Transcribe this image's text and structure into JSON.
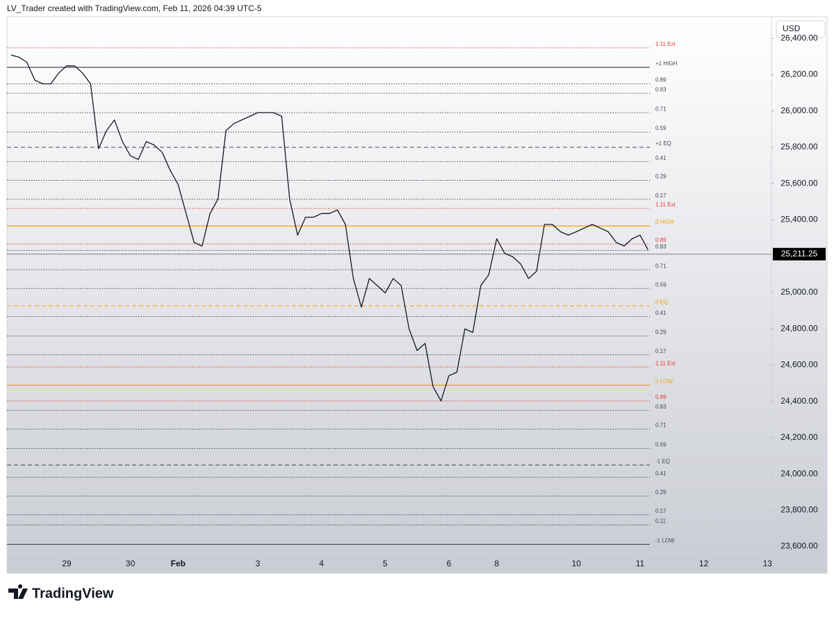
{
  "header": {
    "attribution": "LV_Trader created with TradingView.com, Feb 11, 2026 04:39 UTC-5",
    "currency": "USD",
    "brand": "TradingView"
  },
  "chart_data": {
    "type": "line",
    "color": "#131722",
    "categories": [
      null,
      null,
      null,
      null,
      null,
      null,
      null,
      "29",
      null,
      null,
      null,
      null,
      null,
      null,
      null,
      "30",
      null,
      null,
      null,
      null,
      null,
      "Feb",
      null,
      null,
      null,
      null,
      null,
      null,
      null,
      null,
      null,
      "3",
      null,
      null,
      null,
      null,
      null,
      null,
      null,
      "4",
      null,
      null,
      null,
      null,
      null,
      null,
      null,
      "5",
      null,
      null,
      null,
      null,
      null,
      null,
      null,
      "6",
      null,
      null,
      null,
      null,
      null,
      "8",
      null,
      null,
      null,
      null,
      null,
      null,
      null,
      null,
      null,
      "10",
      null,
      null,
      null,
      null,
      null,
      null,
      null,
      "11",
      null,
      null,
      null,
      null,
      null,
      null,
      null,
      "12",
      null,
      null,
      null,
      null,
      null,
      null,
      null,
      "13"
    ],
    "series": [
      {
        "values": [
          26309,
          26297,
          26269,
          26170,
          26150,
          26150,
          26209,
          26249,
          26249,
          26209,
          26150,
          25792,
          25892,
          25951,
          25832,
          25753,
          25733,
          25832,
          25812,
          25772,
          25673,
          25594,
          25435,
          25276,
          25256,
          25435,
          25514,
          25892,
          25931,
          25951,
          25971,
          25991,
          25991,
          25991,
          25971,
          25514,
          25316,
          25415,
          25415,
          25435,
          25435,
          25455,
          25375,
          25077,
          24919,
          25077,
          25038,
          24998,
          25077,
          25038,
          24799,
          24680,
          24720,
          24482,
          24402,
          24541,
          24561,
          24799,
          24780,
          25038,
          25097,
          25296,
          25216,
          25197,
          25157,
          25077,
          25117,
          25375,
          25375,
          25335,
          25316,
          25335,
          25355,
          25375,
          25355,
          25335,
          25276,
          25256,
          25296,
          25316,
          25236,
          null,
          null,
          null,
          null,
          null,
          null,
          null,
          null,
          null,
          null,
          null,
          null,
          null,
          null,
          null
        ]
      }
    ],
    "ylim": [
      23560,
      26520
    ],
    "yticks": [
      {
        "value": 23600,
        "label": "23,600.00"
      },
      {
        "value": 23800,
        "label": "23,800.00"
      },
      {
        "value": 24000,
        "label": "24,000.00"
      },
      {
        "value": 24200,
        "label": "24,200.00"
      },
      {
        "value": 24400,
        "label": "24,400.00"
      },
      {
        "value": 24600,
        "label": "24,600.00"
      },
      {
        "value": 24800,
        "label": "24,800.00"
      },
      {
        "value": 25000,
        "label": "25,000.00"
      },
      {
        "value": 25200,
        "label": "25,200.00"
      },
      {
        "value": 25400,
        "label": "25,400.00"
      },
      {
        "value": 25600,
        "label": "25,600.00"
      },
      {
        "value": 25800,
        "label": "25,800.00"
      },
      {
        "value": 26000,
        "label": "26,000.00"
      },
      {
        "value": 26200,
        "label": "26,200.00"
      },
      {
        "value": 26400,
        "label": "26,400.00"
      }
    ],
    "last_price": {
      "value": 25211.25,
      "label": "25,211.25"
    },
    "levels": [
      {
        "name": "1.11 Ext",
        "value": 26348,
        "style": "dotted",
        "color": "#e53935"
      },
      {
        "name": "+1 HIGH",
        "value": 26241,
        "style": "solid",
        "color": "#434651"
      },
      {
        "name": "0.89",
        "value": 26150,
        "style": "dotted",
        "color": "#434651"
      },
      {
        "name": "0.83",
        "value": 26098,
        "style": "dotted",
        "color": "#434651"
      },
      {
        "name": "0.71",
        "value": 25991,
        "style": "dotted",
        "color": "#434651"
      },
      {
        "name": "0.59",
        "value": 25884,
        "style": "dotted",
        "color": "#434651"
      },
      {
        "name": "+1 EQ",
        "value": 25800,
        "style": "dashed",
        "color": "#434651"
      },
      {
        "name": "0.41",
        "value": 25721,
        "style": "dotted",
        "color": "#434651"
      },
      {
        "name": "0.29",
        "value": 25618,
        "style": "dotted",
        "color": "#434651"
      },
      {
        "name": "0.17",
        "value": 25514,
        "style": "dotted",
        "color": "#434651"
      },
      {
        "name": "1.11 Ext",
        "value": 25463,
        "style": "dotted",
        "color": "#e53935"
      },
      {
        "name": "0 HIGH",
        "value": 25367,
        "style": "solid",
        "color": "#f59d0b"
      },
      {
        "name": "0.89",
        "value": 25268,
        "style": "dotted",
        "color": "#e53935"
      },
      {
        "name": "0.83",
        "value": 25232,
        "style": "dotted",
        "color": "#434651"
      },
      {
        "name": "0.71",
        "value": 25125,
        "style": "dotted",
        "color": "#434651"
      },
      {
        "name": "0.59",
        "value": 25022,
        "style": "dotted",
        "color": "#434651"
      },
      {
        "name": "0 EQ",
        "value": 24926,
        "style": "dashed",
        "color": "#f59d0b"
      },
      {
        "name": "0.41",
        "value": 24867,
        "style": "dotted",
        "color": "#434651"
      },
      {
        "name": "0.29",
        "value": 24760,
        "style": "dotted",
        "color": "#434651"
      },
      {
        "name": "0.17",
        "value": 24656,
        "style": "dotted",
        "color": "#434651"
      },
      {
        "name": "1.11 Ext",
        "value": 24589,
        "style": "dotted",
        "color": "#e53935"
      },
      {
        "name": "0 LOW",
        "value": 24489,
        "style": "solid",
        "color": "#f59d0b"
      },
      {
        "name": "0.89",
        "value": 24402,
        "style": "dotted",
        "color": "#e53935"
      },
      {
        "name": "0.83",
        "value": 24350,
        "style": "dotted",
        "color": "#434651"
      },
      {
        "name": "0.71",
        "value": 24247,
        "style": "dotted",
        "color": "#434651"
      },
      {
        "name": "0.59",
        "value": 24140,
        "style": "dotted",
        "color": "#434651"
      },
      {
        "name": "-1 EQ",
        "value": 24049,
        "style": "dashed",
        "color": "#434651"
      },
      {
        "name": "0.41",
        "value": 23981,
        "style": "dotted",
        "color": "#434651"
      },
      {
        "name": "0.29",
        "value": 23878,
        "style": "dotted",
        "color": "#434651"
      },
      {
        "name": "0.17",
        "value": 23775,
        "style": "dotted",
        "color": "#434651"
      },
      {
        "name": "0.11",
        "value": 23719,
        "style": "dotted",
        "color": "#434651"
      },
      {
        "name": "-1 LOW",
        "value": 23612,
        "style": "solid",
        "color": "#434651"
      }
    ]
  }
}
